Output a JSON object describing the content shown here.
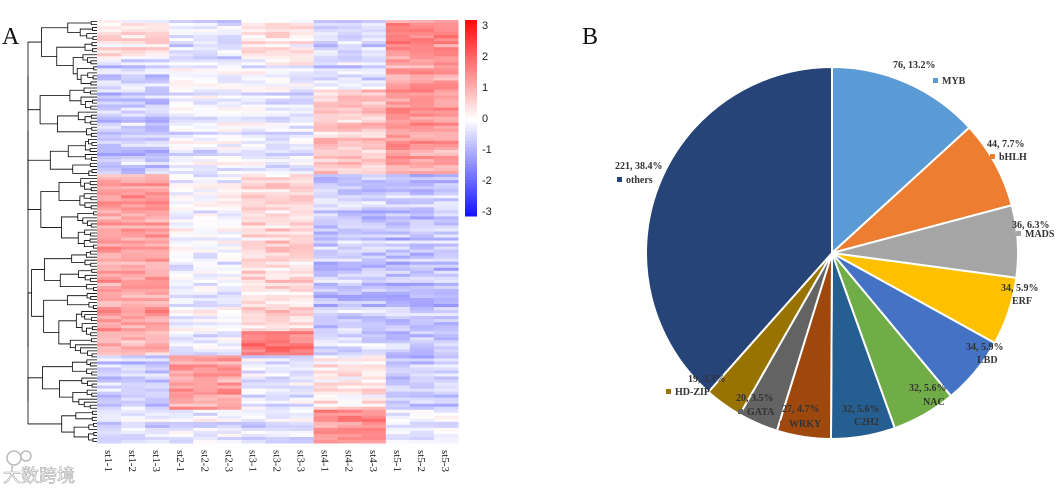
{
  "watermark": "大数跨境",
  "chart_data": [
    {
      "type": "heatmap",
      "panel_label": "A",
      "columns": [
        "st1-1",
        "st1-2",
        "st1-3",
        "st2-1",
        "st2-2",
        "st2-3",
        "st3-1",
        "st3-2",
        "st3-3",
        "st4-1",
        "st4-2",
        "st4-3",
        "st5-1",
        "st5-2",
        "st5-3"
      ],
      "colorbar": {
        "ticks": [
          3,
          2,
          1,
          0,
          -1,
          -2,
          -3
        ],
        "range": [
          -3,
          3
        ],
        "low": "#0000ff",
        "mid": "#ffffff",
        "high": "#ff0000"
      },
      "row_clusters": [
        {
          "rows": 13,
          "group_means": [
            0.3,
            -0.6,
            0.2,
            -0.8,
            1.8
          ]
        },
        {
          "rows": 10,
          "group_means": [
            -0.8,
            -0.3,
            -0.2,
            -0.6,
            1.5
          ]
        },
        {
          "rows": 28,
          "group_means": [
            -0.9,
            -0.3,
            -0.4,
            0.9,
            1.6
          ]
        },
        {
          "rows": 52,
          "group_means": [
            1.5,
            -0.2,
            0.6,
            -0.9,
            -1.0
          ]
        },
        {
          "rows": 8,
          "group_means": [
            1.0,
            -0.4,
            2.0,
            -0.8,
            -1.0
          ]
        },
        {
          "rows": 18,
          "group_means": [
            -0.7,
            1.6,
            -0.3,
            0.4,
            -0.8
          ]
        },
        {
          "rows": 11,
          "group_means": [
            -0.6,
            -0.4,
            -0.5,
            1.8,
            -0.3
          ]
        }
      ]
    },
    {
      "type": "pie",
      "panel_label": "B",
      "slices": [
        {
          "name": "MYB",
          "value": 76,
          "label": "76, 13.2%",
          "color": "#5b9bd5"
        },
        {
          "name": "bHLH",
          "value": 44,
          "label": "44, 7.7%",
          "color": "#ed7d31"
        },
        {
          "name": "MADS",
          "value": 36,
          "label": "36, 6.3%",
          "color": "#a5a5a5"
        },
        {
          "name": "ERF",
          "value": 34,
          "label": "34, 5.9%",
          "color": "#ffc000"
        },
        {
          "name": "LBD",
          "value": 34,
          "label": "34, 5.9%",
          "color": "#4472c4"
        },
        {
          "name": "NAC",
          "value": 32,
          "label": "32, 5.6%",
          "color": "#70ad47"
        },
        {
          "name": "C2H2",
          "value": 32,
          "label": "32, 5.6%",
          "color": "#255e91"
        },
        {
          "name": "WRKY",
          "value": 27,
          "label": "27, 4.7%",
          "color": "#9e480e"
        },
        {
          "name": "GATA",
          "value": 20,
          "label": "20, 3.5%",
          "color": "#636363"
        },
        {
          "name": "HD-ZIP",
          "value": 19,
          "label": "19, 3.3%",
          "color": "#997300"
        },
        {
          "name": "others",
          "value": 221,
          "label": "221, 38.4%",
          "color": "#264478"
        }
      ]
    }
  ]
}
